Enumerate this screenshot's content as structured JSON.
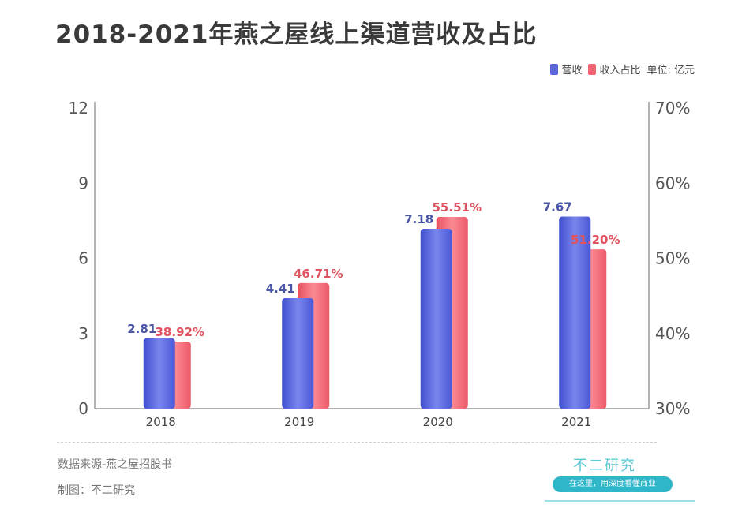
{
  "title": "2018-2021年燕之屋线上渠道营收及占比",
  "legend": {
    "revenue_label": "营收",
    "share_label": "收入占比",
    "unit_label": "单位: 亿元"
  },
  "colors": {
    "revenue": "#5a67d8",
    "share": "#f06572",
    "revenue_text": "#4a55a8",
    "share_text": "#e0525f"
  },
  "chart_data": {
    "type": "bar",
    "categories": [
      "2018",
      "2019",
      "2020",
      "2021"
    ],
    "series": [
      {
        "name": "营收",
        "values": [
          2.81,
          4.41,
          7.18,
          7.67
        ],
        "axis": "left"
      },
      {
        "name": "收入占比",
        "values": [
          38.92,
          46.71,
          55.51,
          51.2
        ],
        "axis": "right",
        "unit": "%"
      }
    ],
    "data_labels": {
      "revenue": [
        "2.81",
        "4.41",
        "7.18",
        "7.67"
      ],
      "share": [
        "38.92%",
        "46.71%",
        "55.51%",
        "51.20%"
      ]
    },
    "ylim_left": [
      0,
      12
    ],
    "yticks_left": [
      "0",
      "3",
      "6",
      "9",
      "12"
    ],
    "ylim_right": [
      30,
      70
    ],
    "yticks_right": [
      "30%",
      "40%",
      "50%",
      "60%",
      "70%"
    ],
    "grid": false,
    "legend_position": "top-right"
  },
  "footer": {
    "source": "数据来源-燕之屋招股书",
    "maker": "制图：不二研究"
  },
  "brand": {
    "name": "不二研究",
    "slogan": "在这里，用深度看懂商业"
  }
}
